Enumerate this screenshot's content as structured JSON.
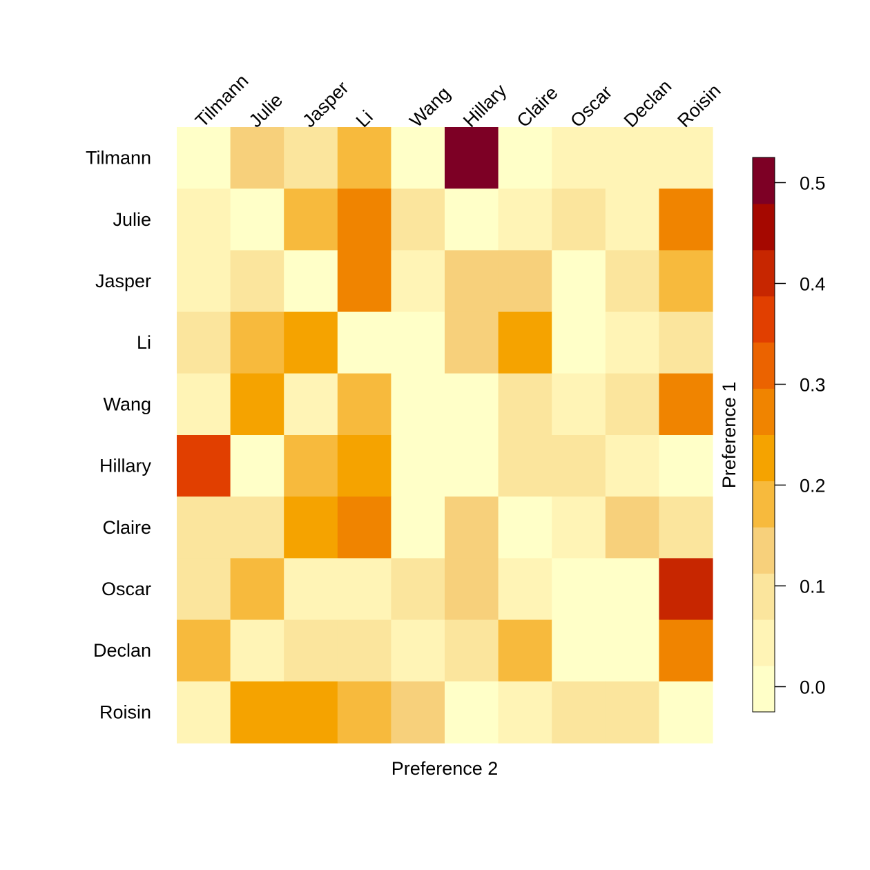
{
  "chart_data": {
    "type": "heatmap",
    "title": "",
    "xlabel": "Preference 2",
    "ylabel": "Preference 1",
    "columns": [
      "Tilmann",
      "Julie",
      "Jasper",
      "Li",
      "Wang",
      "Hillary",
      "Claire",
      "Oscar",
      "Declan",
      "Roisin"
    ],
    "rows": [
      "Tilmann",
      "Julie",
      "Jasper",
      "Li",
      "Wang",
      "Hillary",
      "Claire",
      "Oscar",
      "Declan",
      "Roisin"
    ],
    "values": [
      [
        0.0,
        0.13,
        0.08,
        0.18,
        0.0,
        0.5,
        0.0,
        0.03,
        0.03,
        0.03
      ],
      [
        0.03,
        0.0,
        0.18,
        0.28,
        0.08,
        0.0,
        0.03,
        0.08,
        0.03,
        0.28
      ],
      [
        0.03,
        0.08,
        0.0,
        0.28,
        0.03,
        0.13,
        0.13,
        0.0,
        0.08,
        0.18
      ],
      [
        0.08,
        0.18,
        0.23,
        0.0,
        0.0,
        0.13,
        0.23,
        0.0,
        0.03,
        0.08
      ],
      [
        0.03,
        0.23,
        0.03,
        0.18,
        0.0,
        0.0,
        0.08,
        0.03,
        0.08,
        0.28
      ],
      [
        0.35,
        0.0,
        0.18,
        0.23,
        0.0,
        0.0,
        0.08,
        0.08,
        0.03,
        0.0
      ],
      [
        0.08,
        0.08,
        0.23,
        0.28,
        0.0,
        0.13,
        0.0,
        0.03,
        0.13,
        0.08
      ],
      [
        0.08,
        0.18,
        0.03,
        0.03,
        0.08,
        0.13,
        0.03,
        0.0,
        0.0,
        0.4
      ],
      [
        0.18,
        0.03,
        0.08,
        0.08,
        0.03,
        0.08,
        0.18,
        0.0,
        0.0,
        0.28
      ],
      [
        0.03,
        0.23,
        0.23,
        0.18,
        0.13,
        0.0,
        0.03,
        0.08,
        0.08,
        0.0
      ]
    ],
    "color_range": [
      -0.025,
      0.525
    ],
    "colorbar": {
      "ticks": [
        0.0,
        0.1,
        0.2,
        0.3,
        0.4,
        0.5
      ],
      "tick_labels": [
        "0.0",
        "0.1",
        "0.2",
        "0.3",
        "0.4",
        "0.5"
      ],
      "colors": [
        "#FFFFC8",
        "#FFF4B6",
        "#FBE59D",
        "#F7D07B",
        "#F7BA3D",
        "#F5A300",
        "#F08400",
        "#EB6300",
        "#E13F00",
        "#C72600",
        "#A50800",
        "#7D0025"
      ]
    },
    "legend": "right",
    "grid": false
  }
}
